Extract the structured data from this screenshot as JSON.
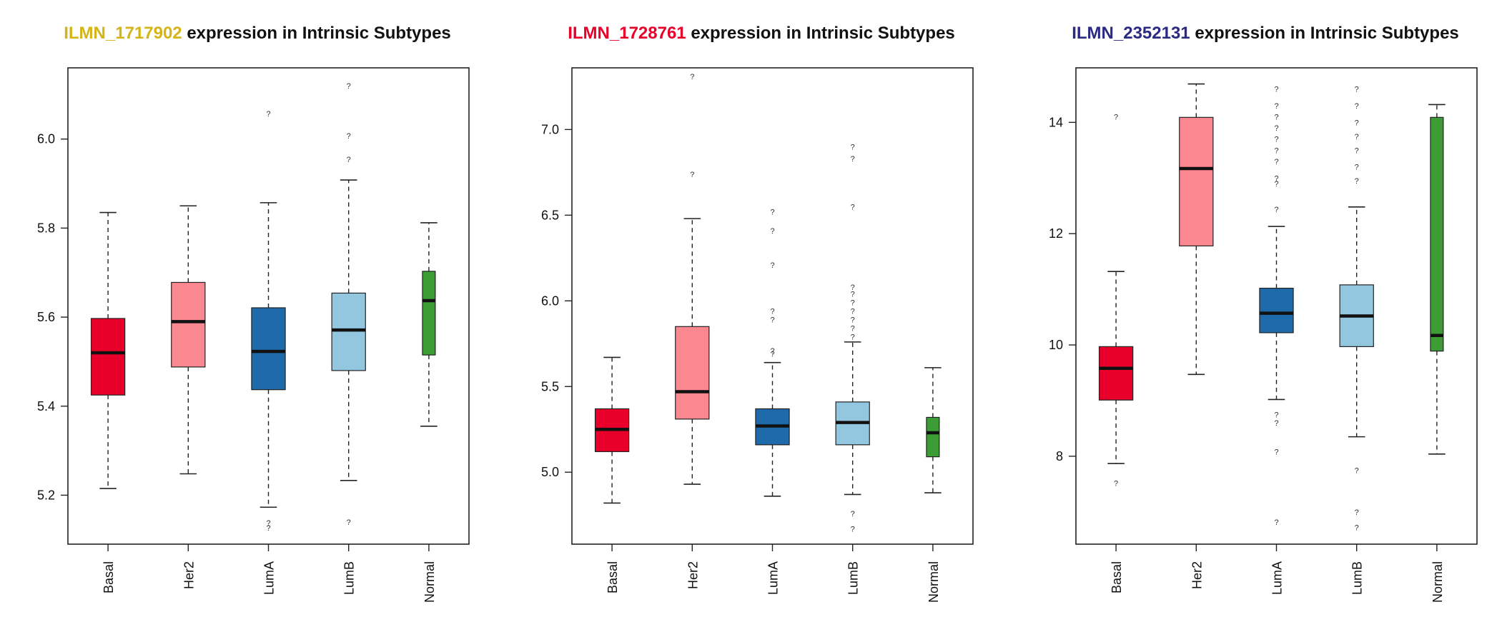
{
  "chart_data": [
    {
      "type": "boxplot",
      "title": {
        "probe": "ILMN_1717902",
        "probe_color": "#d4b416",
        "rest": " expression in Intrinsic Subtypes"
      },
      "categories": [
        "Basal",
        "Her2",
        "LumA",
        "LumB",
        "Normal"
      ],
      "box_colors": [
        "#e8002a",
        "#fb8790",
        "#1f6aab",
        "#93c6df",
        "#3c9d35"
      ],
      "yticks": [
        "5.2",
        "5.4",
        "5.6",
        "5.8",
        "6.0"
      ],
      "ylim": [
        5.09,
        6.16
      ],
      "boxes": [
        {
          "whisker_low": 5.215,
          "q1": 5.425,
          "median": 5.52,
          "q3": 5.597,
          "whisker_high": 5.835,
          "outliers": []
        },
        {
          "whisker_low": 5.248,
          "q1": 5.488,
          "median": 5.59,
          "q3": 5.678,
          "whisker_high": 5.85,
          "outliers": []
        },
        {
          "whisker_low": 5.173,
          "q1": 5.437,
          "median": 5.523,
          "q3": 5.621,
          "whisker_high": 5.857,
          "outliers": [
            5.138,
            5.127,
            6.057
          ]
        },
        {
          "whisker_low": 5.233,
          "q1": 5.48,
          "median": 5.571,
          "q3": 5.654,
          "whisker_high": 5.908,
          "outliers": [
            5.14,
            5.955,
            6.008,
            6.12
          ]
        },
        {
          "whisker_low": 5.355,
          "q1": 5.515,
          "median": 5.637,
          "q3": 5.703,
          "whisker_high": 5.812,
          "outliers": []
        }
      ]
    },
    {
      "type": "boxplot",
      "title": {
        "probe": "ILMN_1728761",
        "probe_color": "#e8002a",
        "rest": " expression in Intrinsic Subtypes"
      },
      "categories": [
        "Basal",
        "Her2",
        "LumA",
        "LumB",
        "Normal"
      ],
      "box_colors": [
        "#e8002a",
        "#fb8790",
        "#1f6aab",
        "#93c6df",
        "#3c9d35"
      ],
      "yticks": [
        "5.0",
        "5.5",
        "6.0",
        "6.5",
        "7.0"
      ],
      "ylim": [
        4.58,
        7.36
      ],
      "boxes": [
        {
          "whisker_low": 4.82,
          "q1": 5.12,
          "median": 5.25,
          "q3": 5.37,
          "whisker_high": 5.67,
          "outliers": []
        },
        {
          "whisker_low": 4.93,
          "q1": 5.31,
          "median": 5.47,
          "q3": 5.85,
          "whisker_high": 6.48,
          "outliers": [
            6.74,
            7.31
          ]
        },
        {
          "whisker_low": 4.86,
          "q1": 5.16,
          "median": 5.27,
          "q3": 5.37,
          "whisker_high": 5.64,
          "outliers": [
            5.69,
            5.71,
            5.89,
            5.94,
            6.21,
            6.41,
            6.52
          ]
        },
        {
          "whisker_low": 4.87,
          "q1": 5.16,
          "median": 5.29,
          "q3": 5.41,
          "whisker_high": 5.76,
          "outliers": [
            4.67,
            4.76,
            5.79,
            5.84,
            5.89,
            5.94,
            5.99,
            6.04,
            6.08,
            6.55,
            6.83,
            6.9
          ]
        },
        {
          "whisker_low": 4.88,
          "q1": 5.09,
          "median": 5.23,
          "q3": 5.32,
          "whisker_high": 5.61,
          "outliers": []
        }
      ]
    },
    {
      "type": "boxplot",
      "title": {
        "probe": "ILMN_2352131",
        "probe_color": "#2a2a82",
        "rest": " expression in Intrinsic Subtypes"
      },
      "categories": [
        "Basal",
        "Her2",
        "LumA",
        "LumB",
        "Normal"
      ],
      "box_colors": [
        "#e8002a",
        "#fb8790",
        "#1f6aab",
        "#93c6df",
        "#3c9d35"
      ],
      "yticks": [
        "8",
        "10",
        "12",
        "14"
      ],
      "ylim": [
        6.42,
        14.98
      ],
      "boxes": [
        {
          "whisker_low": 7.87,
          "q1": 9.01,
          "median": 9.58,
          "q3": 9.97,
          "whisker_high": 11.32,
          "outliers": [
            7.52,
            14.1
          ]
        },
        {
          "whisker_low": 9.47,
          "q1": 11.78,
          "median": 13.17,
          "q3": 14.09,
          "whisker_high": 14.69,
          "outliers": []
        },
        {
          "whisker_low": 9.02,
          "q1": 10.22,
          "median": 10.57,
          "q3": 11.02,
          "whisker_high": 12.13,
          "outliers": [
            6.82,
            8.08,
            8.6,
            8.75,
            12.44,
            12.9,
            13.0,
            13.3,
            13.5,
            13.7,
            13.9,
            14.1,
            14.3,
            14.6
          ]
        },
        {
          "whisker_low": 8.35,
          "q1": 9.97,
          "median": 10.52,
          "q3": 11.08,
          "whisker_high": 12.48,
          "outliers": [
            6.72,
            7.0,
            7.75,
            12.95,
            13.2,
            13.5,
            13.75,
            14.0,
            14.3,
            14.6
          ]
        },
        {
          "whisker_low": 8.04,
          "q1": 9.89,
          "median": 10.17,
          "q3": 14.09,
          "whisker_high": 14.32,
          "outliers": []
        }
      ]
    }
  ]
}
